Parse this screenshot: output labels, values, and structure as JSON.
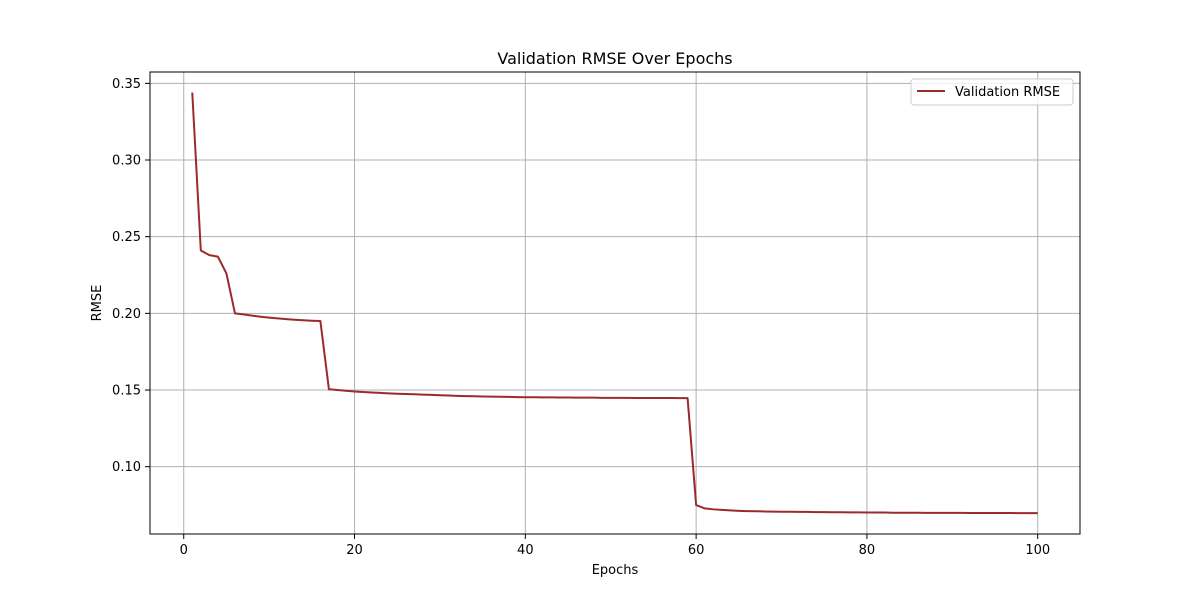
{
  "chart_data": {
    "type": "line",
    "title": "Validation RMSE Over Epochs",
    "xlabel": "Epochs",
    "ylabel": "RMSE",
    "xlim": [
      -3.95,
      104.95
    ],
    "ylim": [
      0.0561,
      0.3574
    ],
    "xticks": [
      0,
      20,
      40,
      60,
      80,
      100
    ],
    "yticks": [
      0.1,
      0.15,
      0.2,
      0.25,
      0.3,
      0.35
    ],
    "ytick_labels": [
      "0.10",
      "0.15",
      "0.20",
      "0.25",
      "0.30",
      "0.35"
    ],
    "grid": true,
    "legend_position": "top-right",
    "series": [
      {
        "name": "Validation RMSE",
        "color": "#9b2a2a",
        "x": [
          1,
          2,
          3,
          4,
          5,
          6,
          7,
          8,
          9,
          10,
          11,
          12,
          13,
          14,
          15,
          16,
          17,
          18,
          19,
          20,
          21,
          22,
          23,
          24,
          25,
          26,
          27,
          28,
          29,
          30,
          31,
          32,
          33,
          34,
          35,
          36,
          37,
          38,
          39,
          40,
          41,
          42,
          43,
          44,
          45,
          46,
          47,
          48,
          49,
          50,
          51,
          52,
          53,
          54,
          55,
          56,
          57,
          58,
          59,
          60,
          61,
          62,
          63,
          64,
          65,
          66,
          67,
          68,
          69,
          70,
          71,
          72,
          73,
          74,
          75,
          76,
          77,
          78,
          79,
          80,
          81,
          82,
          83,
          84,
          85,
          86,
          87,
          88,
          89,
          90,
          91,
          92,
          93,
          94,
          95,
          96,
          97,
          98,
          99,
          100
        ],
        "y": [
          0.344,
          0.241,
          0.238,
          0.237,
          0.226,
          0.2,
          0.1993,
          0.1985,
          0.1978,
          0.1972,
          0.1967,
          0.1962,
          0.1958,
          0.1955,
          0.1952,
          0.195,
          0.1505,
          0.15,
          0.1495,
          0.149,
          0.1487,
          0.1484,
          0.1481,
          0.1478,
          0.1476,
          0.1474,
          0.1472,
          0.147,
          0.1468,
          0.1466,
          0.1464,
          0.1462,
          0.146,
          0.1459,
          0.1458,
          0.1457,
          0.1456,
          0.1455,
          0.1454,
          0.1453,
          0.1453,
          0.1452,
          0.1452,
          0.1451,
          0.1451,
          0.145,
          0.145,
          0.145,
          0.1449,
          0.1449,
          0.1449,
          0.1449,
          0.1448,
          0.1448,
          0.1448,
          0.1448,
          0.1448,
          0.1447,
          0.1447,
          0.075,
          0.0728,
          0.0722,
          0.0718,
          0.0715,
          0.0712,
          0.071,
          0.0709,
          0.0708,
          0.0707,
          0.0706,
          0.0706,
          0.0705,
          0.0705,
          0.0704,
          0.0704,
          0.0703,
          0.0703,
          0.0702,
          0.0702,
          0.0701,
          0.0701,
          0.0701,
          0.07,
          0.07,
          0.07,
          0.07,
          0.0699,
          0.0699,
          0.0699,
          0.0699,
          0.0699,
          0.0698,
          0.0698,
          0.0698,
          0.0698,
          0.0698,
          0.0698,
          0.0697,
          0.0697,
          0.0697
        ]
      }
    ]
  }
}
